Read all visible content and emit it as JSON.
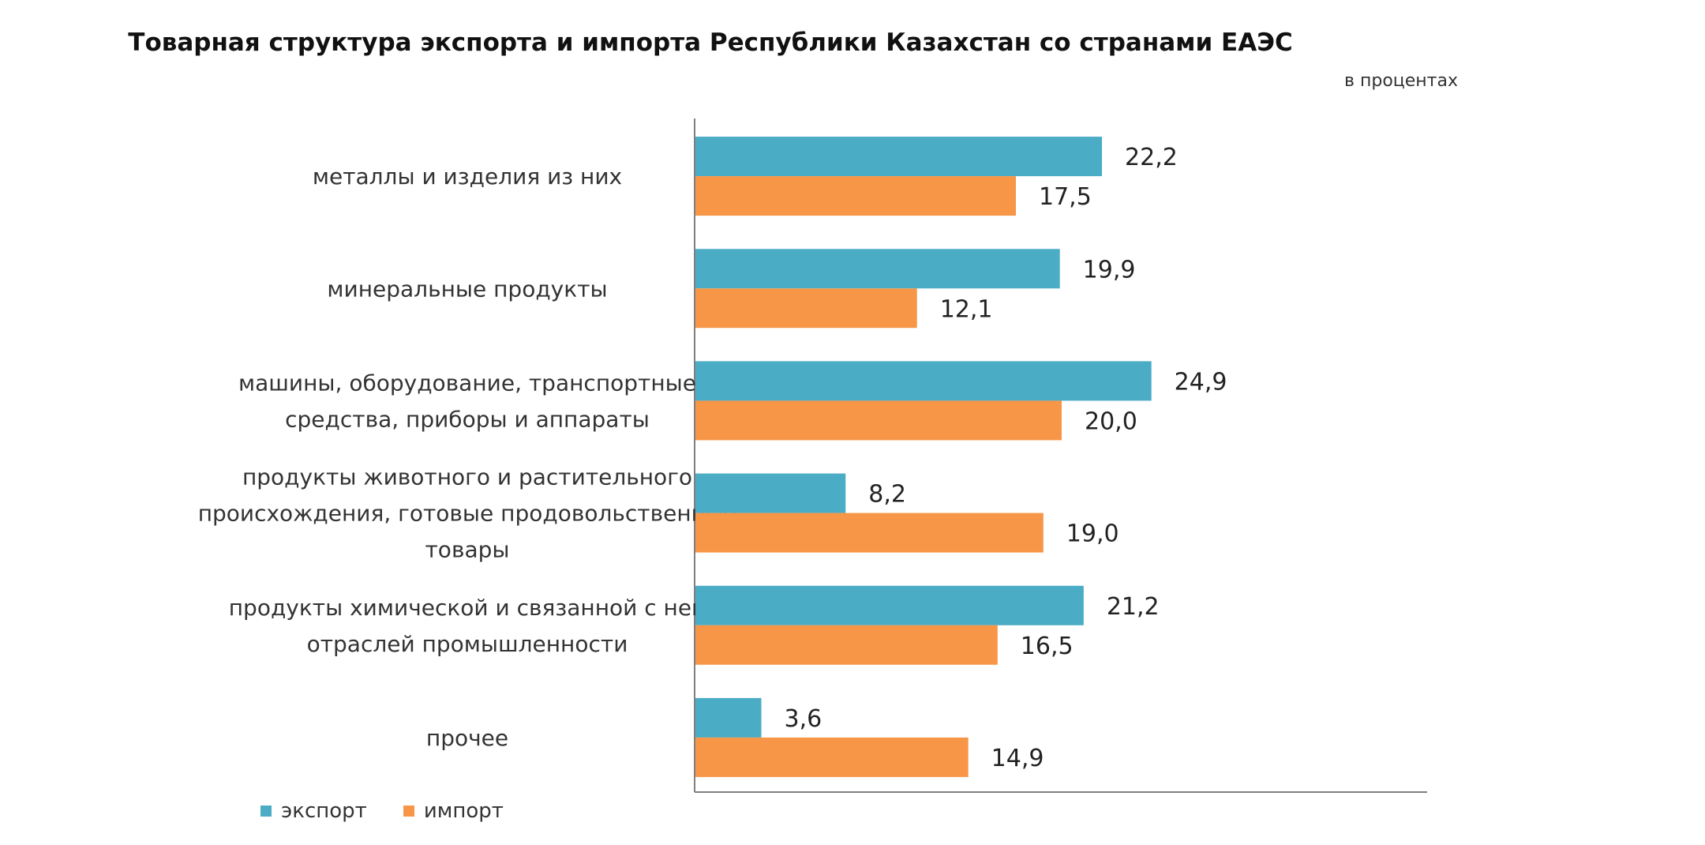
{
  "colors": {
    "export": "#4BACC6",
    "import": "#F79646",
    "axis": "#7f7f7f"
  },
  "chart_data": {
    "type": "bar",
    "orientation": "horizontal",
    "title": "Товарная структура экспорта и импорта Республики Казахстан со странами ЕАЭС",
    "subtitle": "в процентах",
    "categories": [
      [
        "металлы  и изделия из них"
      ],
      [
        "минеральные  продукты"
      ],
      [
        "машины, оборудование,  транспортные",
        "средства, приборы  и аппараты"
      ],
      [
        "продукты  животного  и растительного",
        "происхождения,  готовые  продовольственные",
        "товары"
      ],
      [
        "продукты  химической  и связанной  с ней",
        "отраслей  промышленности"
      ],
      [
        "прочее"
      ]
    ],
    "series": [
      {
        "name": "экспорт",
        "values": [
          22.2,
          19.9,
          24.9,
          8.2,
          21.2,
          3.6
        ],
        "labels": [
          "22,2",
          "19,9",
          "24,9",
          "8,2",
          "21,2",
          "3,6"
        ]
      },
      {
        "name": "импорт",
        "values": [
          17.5,
          12.1,
          20.0,
          19.0,
          16.5,
          14.9
        ],
        "labels": [
          "17,5",
          "12,1",
          "20,0",
          "19,0",
          "16,5",
          "14,9"
        ]
      }
    ],
    "xlim": [
      0,
      40
    ],
    "grid": false,
    "legend_position": "bottom-left"
  }
}
